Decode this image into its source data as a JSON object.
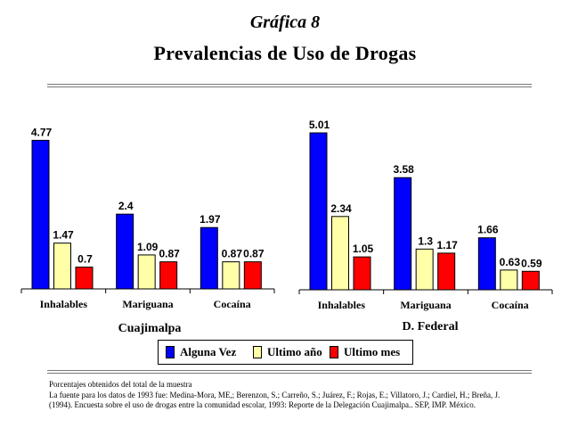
{
  "header": {
    "title": "Gráfica 8",
    "subtitle": "Prevalencias de Uso de Drogas"
  },
  "legend": [
    {
      "label": "Alguna Vez",
      "color": "#0000ff"
    },
    {
      "label": "Ultimo año",
      "color": "#ffffa8"
    },
    {
      "label": "Ultimo mes",
      "color": "#ff0000"
    }
  ],
  "chart_data": [
    {
      "type": "bar",
      "title": "Cuajimalpa",
      "categories": [
        "Inhalables",
        "Mariguana",
        "Cocaína"
      ],
      "series": [
        {
          "name": "Alguna Vez",
          "values": [
            4.77,
            2.4,
            1.97
          ]
        },
        {
          "name": "Ultimo año",
          "values": [
            1.47,
            1.09,
            0.87
          ]
        },
        {
          "name": "Ultimo mes",
          "values": [
            0.7,
            0.87,
            0.87
          ]
        }
      ],
      "ylim": [
        0,
        5.01
      ],
      "grid": false
    },
    {
      "type": "bar",
      "title": "D. Federal",
      "categories": [
        "Inhalables",
        "Mariguana",
        "Cocaína"
      ],
      "series": [
        {
          "name": "Alguna Vez",
          "values": [
            5.01,
            3.58,
            1.66
          ]
        },
        {
          "name": "Ultimo año",
          "values": [
            2.34,
            1.3,
            0.63
          ]
        },
        {
          "name": "Ultimo mes",
          "values": [
            1.05,
            1.17,
            0.59
          ]
        }
      ],
      "ylim": [
        0,
        5.01
      ],
      "grid": false
    }
  ],
  "notes": [
    "Porcentajes obtenidos del total de la muestra",
    "La fuente para los datos de 1993 fue: Medina-Mora, ME,; Berenzon, S.; Carreño, S.; Juárez, F.; Rojas, E.; Villatoro, J.; Cardiel, H.; Breña, J.",
    "(1994). Encuesta sobre el uso de drogas entre la comunidad escolar, 1993: Reporte de la Delegación Cuajimalpa.. SEP, IMP. México."
  ]
}
